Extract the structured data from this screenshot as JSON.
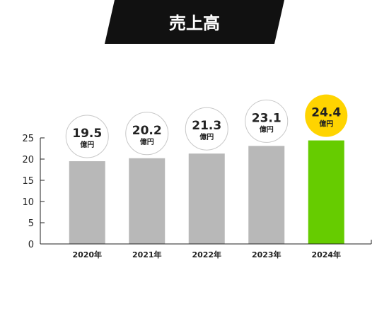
{
  "chart_data": {
    "type": "bar",
    "title": "売上高",
    "categories": [
      "2020年",
      "2021年",
      "2022年",
      "2023年",
      "2024年"
    ],
    "values": [
      19.5,
      20.2,
      21.3,
      23.1,
      24.4
    ],
    "value_labels": [
      "19.5",
      "20.2",
      "21.3",
      "23.1",
      "24.4"
    ],
    "unit_label": "億円",
    "ylim": [
      0,
      25
    ],
    "yticks": [
      0,
      5,
      10,
      15,
      20,
      25
    ],
    "grid": false,
    "highlight_index": 4,
    "colors": {
      "bar": "#b8b8b8",
      "highlight_bar": "#66cc00",
      "label_circle_fill": "#ffffff",
      "label_circle_stroke": "#c8c8c8",
      "highlight_circle_fill": "#ffd400",
      "title_banner": "#111111",
      "axis": "#222222"
    }
  }
}
